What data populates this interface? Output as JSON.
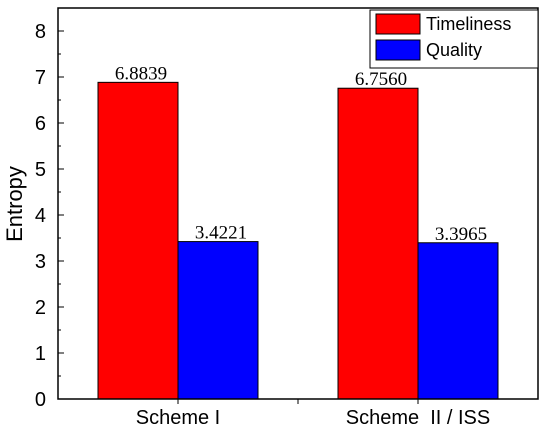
{
  "chart_data": {
    "type": "bar",
    "title": "",
    "xlabel": "",
    "ylabel": "Entropy",
    "ylim": [
      0,
      8.5
    ],
    "yticks": [
      0,
      1,
      2,
      3,
      4,
      5,
      6,
      7,
      8
    ],
    "categories": [
      "Scheme I",
      "Scheme  II / ISS"
    ],
    "series": [
      {
        "name": "Timeliness",
        "values": [
          6.8839,
          6.756
        ],
        "labels": [
          "6.8839",
          "6.7560"
        ],
        "color": "#ff0000"
      },
      {
        "name": "Quality",
        "values": [
          3.4221,
          3.3965
        ],
        "labels": [
          "3.4221",
          "3.3965"
        ],
        "color": "#0000ff"
      }
    ],
    "legend": "top-right",
    "grid": false
  }
}
